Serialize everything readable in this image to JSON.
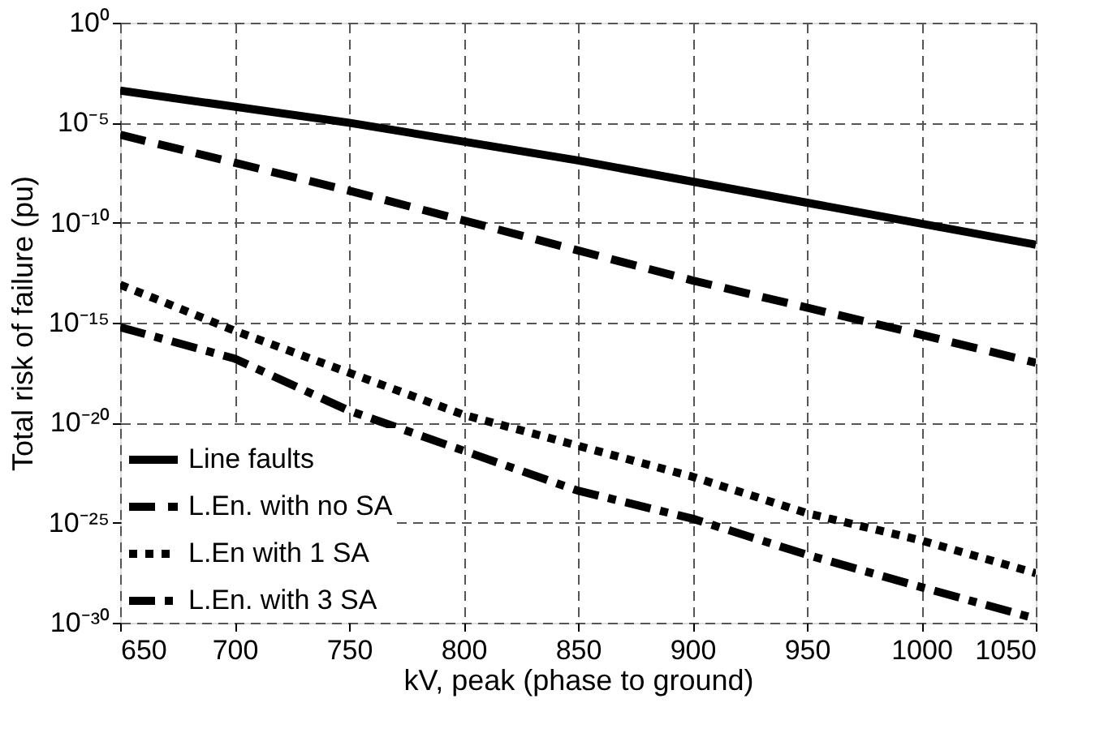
{
  "chart_data": {
    "type": "line",
    "xlabel": "kV, peak (phase to ground)",
    "ylabel": "Total risk of failure (pu)",
    "xlim": [
      650,
      1050
    ],
    "xticks": [
      650,
      700,
      750,
      800,
      850,
      900,
      950,
      1000,
      1050
    ],
    "ylim": [
      1e-30,
      1
    ],
    "log": true,
    "yticks": [
      {
        "value": 1e-30,
        "label": "10⁻³⁰"
      },
      {
        "value": 1e-25,
        "label": "10⁻²⁵"
      },
      {
        "value": 1e-20,
        "label": "10⁻²⁰"
      },
      {
        "value": 1e-15,
        "label": "10⁻¹⁵"
      },
      {
        "value": 1e-10,
        "label": "10⁻¹⁰"
      },
      {
        "value": 1e-05,
        "label": "10⁻⁵"
      },
      {
        "value": 1,
        "label": "10⁰"
      }
    ],
    "grid": true,
    "legend": "bottom left",
    "marker": "none",
    "series": [
      {
        "name": "Line faults",
        "color": "#000000",
        "line_style": "solid",
        "x": [
          650,
          750,
          850,
          950,
          1050
        ],
        "values": [
          0.0004,
          1e-05,
          1.3e-07,
          1e-09,
          8e-12
        ]
      },
      {
        "name": "L.En. with no SA",
        "color": "#000000",
        "line_style": "dashed",
        "x": [
          650,
          750,
          800,
          900,
          1000,
          1050
        ],
        "values": [
          2.5e-06,
          4e-09,
          1.3e-10,
          1.3e-13,
          2.5e-16,
          1e-17
        ]
      },
      {
        "name": "L.En with 1 SA",
        "color": "#000000",
        "line_style": "dotted",
        "x": [
          650,
          700,
          800,
          900,
          950,
          1000,
          1050
        ],
        "values": [
          8e-14,
          4e-16,
          2.5e-20,
          2e-23,
          3e-25,
          1.3e-26,
          3e-28
        ]
      },
      {
        "name": "L.En. with 3 SA",
        "color": "#000000",
        "line_style": "dashdot",
        "x": [
          650,
          700,
          750,
          850,
          900,
          950,
          1000,
          1050
        ],
        "values": [
          6e-16,
          1.6e-17,
          4e-20,
          4e-24,
          1.6e-25,
          2.5e-27,
          6e-29,
          1.6e-30
        ]
      }
    ]
  }
}
